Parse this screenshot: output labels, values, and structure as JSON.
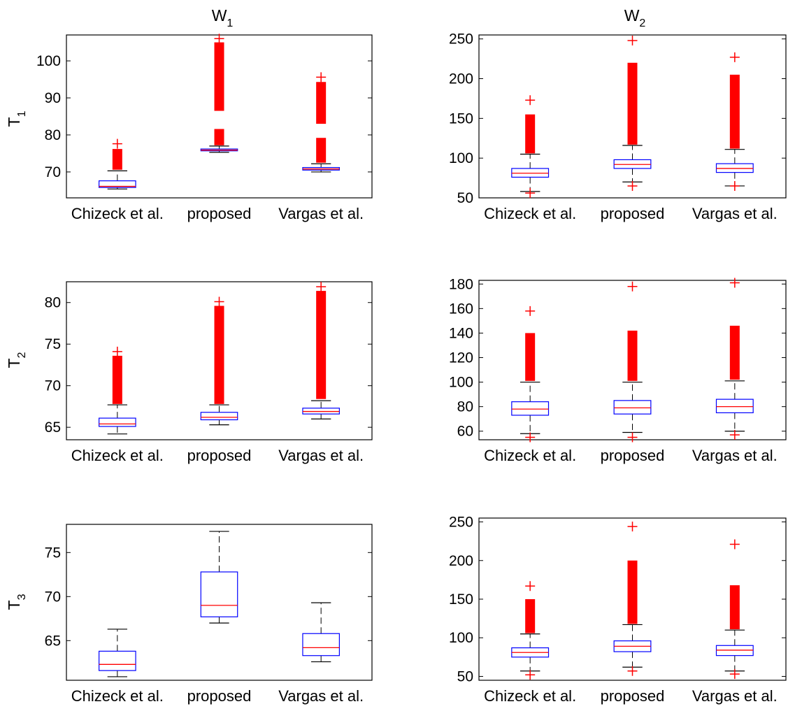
{
  "figure": {
    "column_titles": [
      {
        "main": "W",
        "sub": "1"
      },
      {
        "main": "W",
        "sub": "2"
      }
    ],
    "row_labels": [
      {
        "main": "T",
        "sub": "1"
      },
      {
        "main": "T",
        "sub": "2"
      },
      {
        "main": "T",
        "sub": "3"
      }
    ]
  },
  "colors": {
    "box": "#0000ff",
    "median": "#ff0000",
    "outlier": "#ff0000",
    "whisker": "#000000",
    "axes": "#000000"
  },
  "chart_data": [
    {
      "type": "box",
      "panel": "T1-W1",
      "categories": [
        "Chizeck et al.",
        "proposed",
        "Vargas et al."
      ],
      "ylim": [
        63,
        107
      ],
      "yticks": [
        70,
        80,
        90,
        100
      ],
      "grid": false,
      "boxes": [
        {
          "q1": 65.8,
          "median": 66.1,
          "q3": 67.6,
          "whislo": 65.4,
          "whishi": 70.3,
          "outlier_bands": [
            [
              70.6,
              76.2
            ]
          ],
          "outlier_top": 77.6
        },
        {
          "q1": 75.7,
          "median": 75.9,
          "q3": 76.2,
          "whislo": 75.3,
          "whishi": 77.0,
          "outlier_bands": [
            [
              77.2,
              81.6
            ],
            [
              86.5,
              105.0
            ]
          ],
          "outlier_top": 106.0
        },
        {
          "q1": 70.5,
          "median": 70.8,
          "q3": 71.2,
          "whislo": 70.0,
          "whishi": 72.2,
          "outlier_bands": [
            [
              72.5,
              79.2
            ],
            [
              83.0,
              94.3
            ]
          ],
          "outlier_top": 95.6
        }
      ]
    },
    {
      "type": "box",
      "panel": "T1-W2",
      "categories": [
        "Chizeck et al.",
        "proposed",
        "Vargas et al."
      ],
      "ylim": [
        50,
        255
      ],
      "yticks": [
        50,
        100,
        150,
        200,
        250
      ],
      "grid": false,
      "boxes": [
        {
          "q1": 76,
          "median": 81,
          "q3": 87,
          "whislo": 58,
          "whishi": 105,
          "outlier_bands": [
            [
              106,
              155
            ]
          ],
          "outlier_top": 173,
          "outlier_bottom": 56
        },
        {
          "q1": 87,
          "median": 92,
          "q3": 98,
          "whislo": 70,
          "whishi": 116,
          "outlier_bands": [
            [
              117,
              220
            ]
          ],
          "outlier_top": 248,
          "outlier_bottom": 65
        },
        {
          "q1": 82,
          "median": 87,
          "q3": 93,
          "whislo": 65,
          "whishi": 111,
          "outlier_bands": [
            [
              112,
              205
            ]
          ],
          "outlier_top": 227,
          "outlier_bottom": 65
        }
      ]
    },
    {
      "type": "box",
      "panel": "T2-W1",
      "categories": [
        "Chizeck et al.",
        "proposed",
        "Vargas et al."
      ],
      "ylim": [
        63.5,
        82.5
      ],
      "yticks": [
        65,
        70,
        75,
        80
      ],
      "grid": false,
      "boxes": [
        {
          "q1": 65.1,
          "median": 65.4,
          "q3": 66.1,
          "whislo": 64.2,
          "whishi": 67.7,
          "outlier_bands": [
            [
              67.8,
              73.6
            ]
          ],
          "outlier_top": 74.1
        },
        {
          "q1": 65.9,
          "median": 66.2,
          "q3": 66.8,
          "whislo": 65.3,
          "whishi": 67.7,
          "outlier_bands": [
            [
              67.8,
              79.6
            ]
          ],
          "outlier_top": 80.1
        },
        {
          "q1": 66.6,
          "median": 66.9,
          "q3": 67.3,
          "whislo": 66.0,
          "whishi": 68.2,
          "outlier_bands": [
            [
              68.4,
              81.4
            ]
          ],
          "outlier_top": 81.9
        }
      ]
    },
    {
      "type": "box",
      "panel": "T2-W2",
      "categories": [
        "Chizeck et al.",
        "proposed",
        "Vargas et al."
      ],
      "ylim": [
        53,
        183
      ],
      "yticks": [
        60,
        80,
        100,
        120,
        140,
        160,
        180
      ],
      "grid": false,
      "boxes": [
        {
          "q1": 73,
          "median": 78,
          "q3": 84,
          "whislo": 58,
          "whishi": 100,
          "outlier_bands": [
            [
              101,
              140
            ]
          ],
          "outlier_top": 158,
          "outlier_bottom": 55
        },
        {
          "q1": 74,
          "median": 79,
          "q3": 85,
          "whislo": 59,
          "whishi": 100,
          "outlier_bands": [
            [
              101,
              142
            ]
          ],
          "outlier_top": 178,
          "outlier_bottom": 55
        },
        {
          "q1": 75,
          "median": 80,
          "q3": 86,
          "whislo": 60,
          "whishi": 101,
          "outlier_bands": [
            [
              102,
              146
            ]
          ],
          "outlier_top": 181,
          "outlier_bottom": 57
        }
      ]
    },
    {
      "type": "box",
      "panel": "T3-W1",
      "categories": [
        "Chizeck et al.",
        "proposed",
        "Vargas et al."
      ],
      "ylim": [
        60.5,
        78.2
      ],
      "yticks": [
        65,
        70,
        75
      ],
      "grid": false,
      "boxes": [
        {
          "q1": 61.6,
          "median": 62.3,
          "q3": 63.8,
          "whislo": 60.9,
          "whishi": 66.3,
          "outlier_bands": []
        },
        {
          "q1": 67.7,
          "median": 69.0,
          "q3": 72.8,
          "whislo": 67.0,
          "whishi": 77.4,
          "outlier_bands": []
        },
        {
          "q1": 63.3,
          "median": 64.2,
          "q3": 65.8,
          "whislo": 62.6,
          "whishi": 69.3,
          "outlier_bands": []
        }
      ]
    },
    {
      "type": "box",
      "panel": "T3-W2",
      "categories": [
        "Chizeck et al.",
        "proposed",
        "Vargas et al."
      ],
      "ylim": [
        45,
        255
      ],
      "yticks": [
        50,
        100,
        150,
        200,
        250
      ],
      "grid": false,
      "boxes": [
        {
          "q1": 75,
          "median": 81,
          "q3": 87,
          "whislo": 57,
          "whishi": 105,
          "outlier_bands": [
            [
              106,
              150
            ]
          ],
          "outlier_top": 167,
          "outlier_bottom": 52
        },
        {
          "q1": 82,
          "median": 89,
          "q3": 96,
          "whislo": 62,
          "whishi": 117,
          "outlier_bands": [
            [
              118,
              200
            ]
          ],
          "outlier_top": 244,
          "outlier_bottom": 57
        },
        {
          "q1": 77,
          "median": 84,
          "q3": 90,
          "whislo": 57,
          "whishi": 110,
          "outlier_bands": [
            [
              111,
              168
            ]
          ],
          "outlier_top": 221,
          "outlier_bottom": 53
        }
      ]
    }
  ]
}
